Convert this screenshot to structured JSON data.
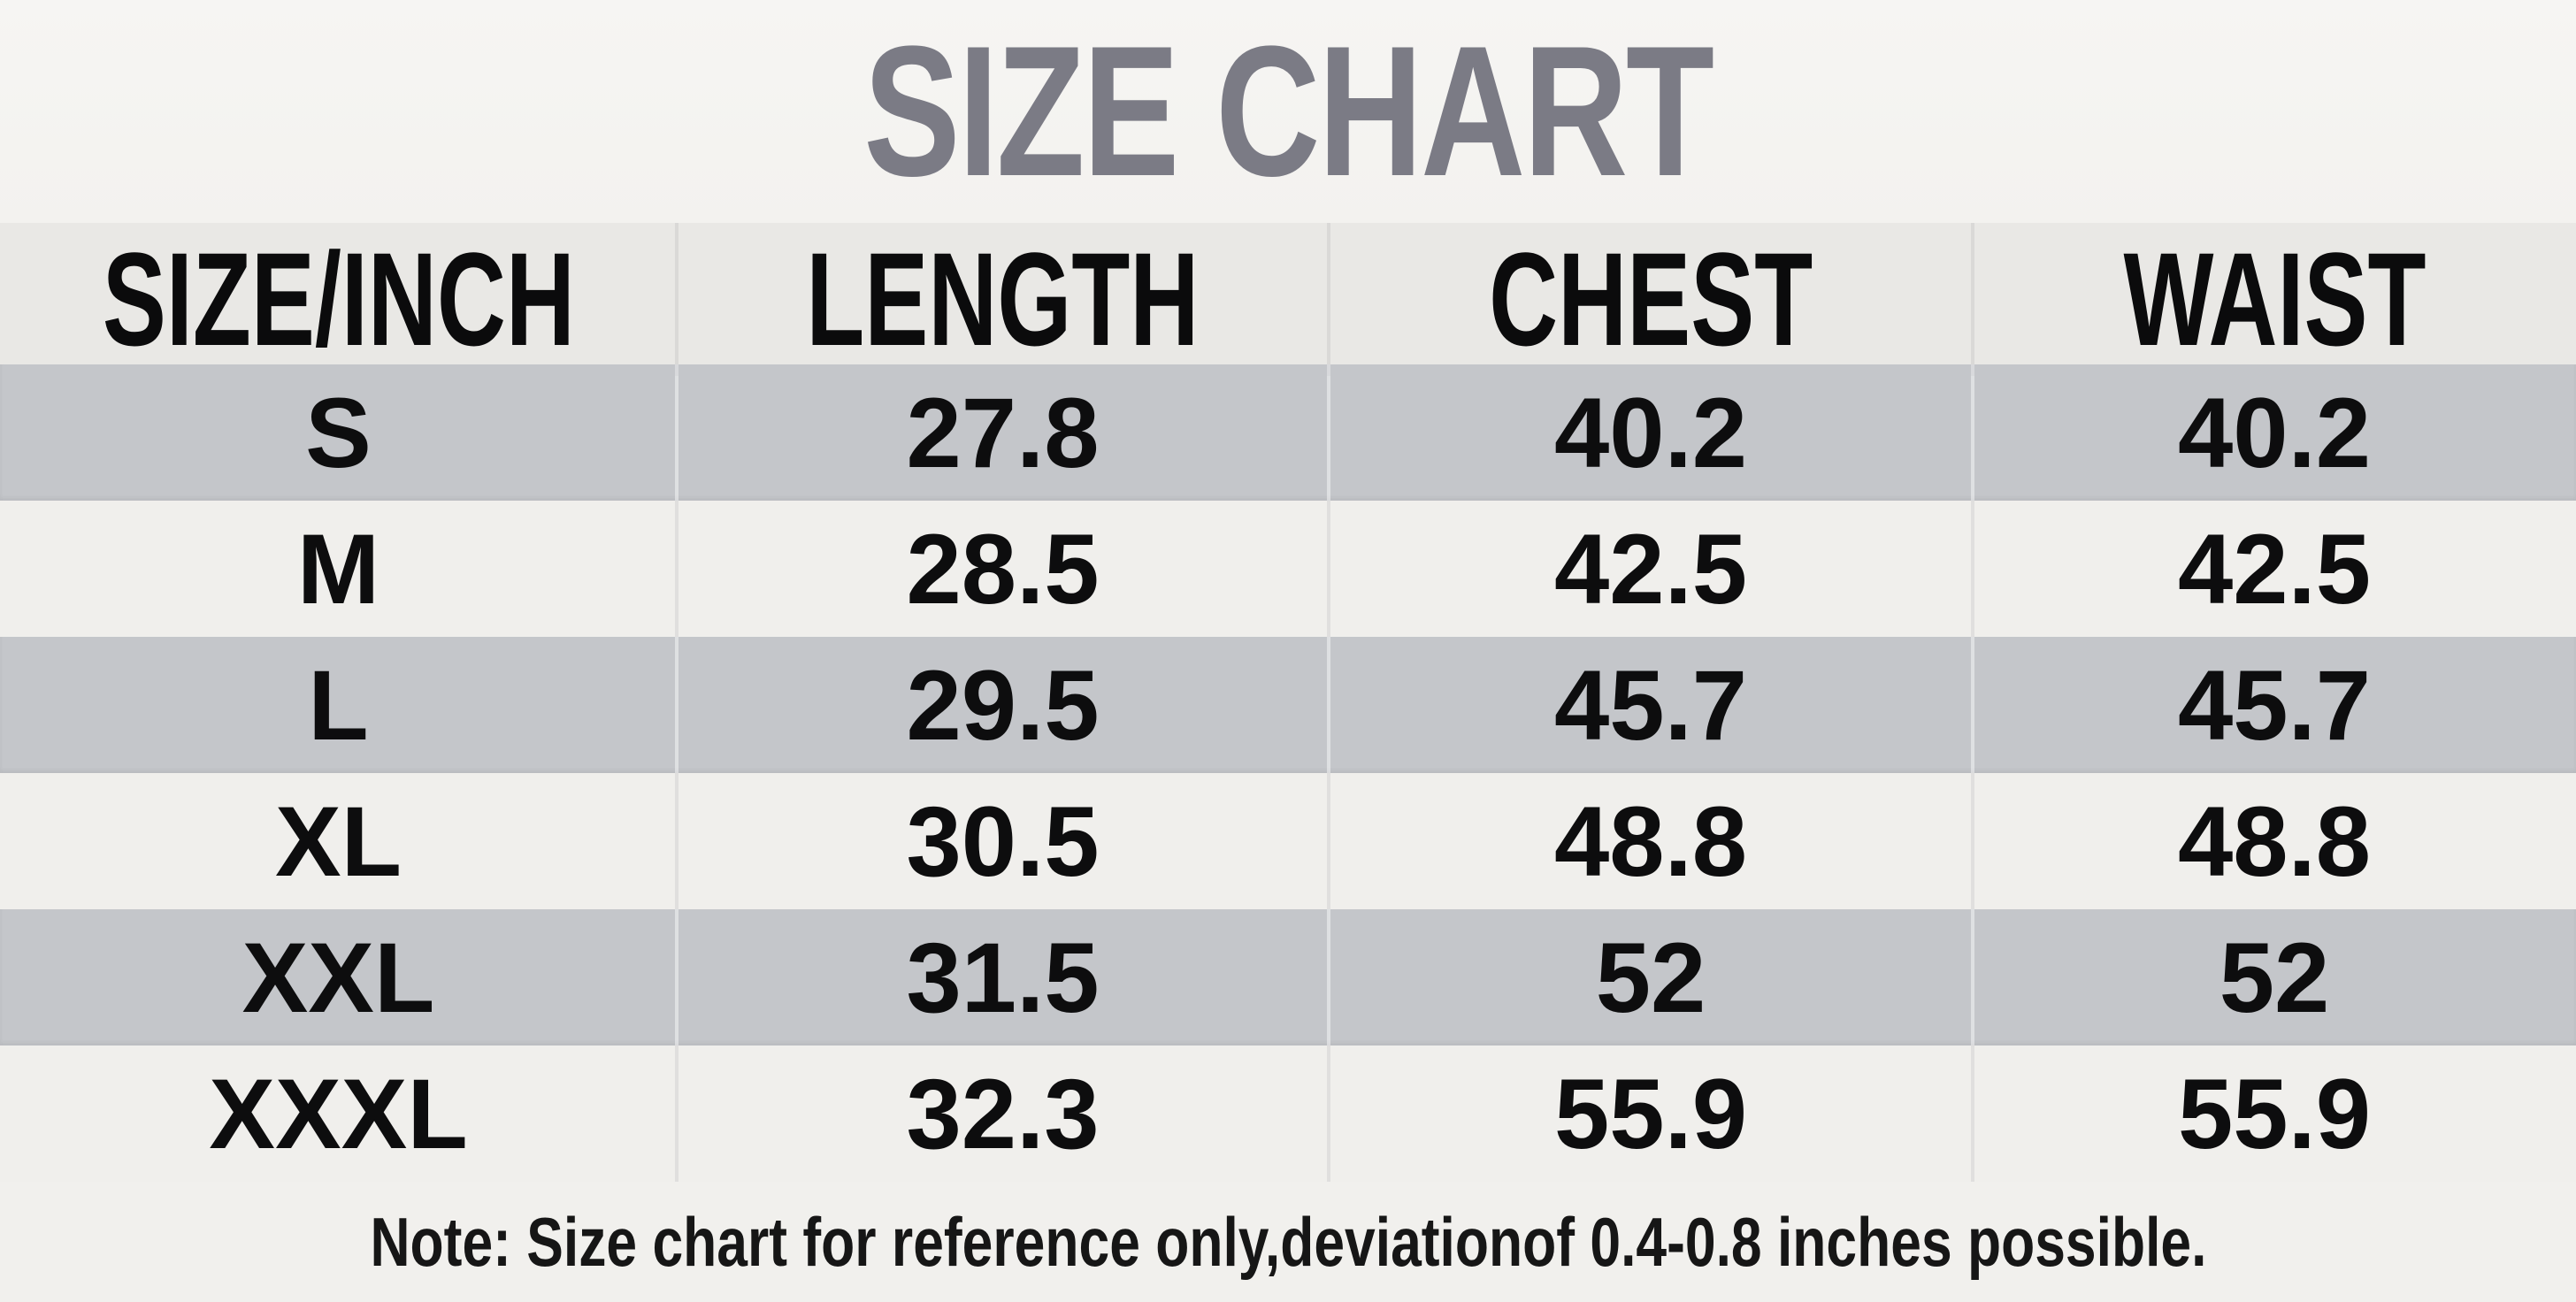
{
  "chart_data": {
    "type": "table",
    "title": "SIZE CHART",
    "units": "inches",
    "columns": [
      "SIZE/INCH",
      "LENGTH",
      "CHEST",
      "WAIST"
    ],
    "rows": [
      [
        "S",
        "27.8",
        "40.2",
        "40.2"
      ],
      [
        "M",
        "28.5",
        "42.5",
        "42.5"
      ],
      [
        "L",
        "29.5",
        "45.7",
        "45.7"
      ],
      [
        "XL",
        "30.5",
        "48.8",
        "48.8"
      ],
      [
        "XXL",
        "31.5",
        "52",
        "52"
      ],
      [
        "XXXL",
        "32.3",
        "55.9",
        "55.9"
      ]
    ],
    "note": "Note: Size chart for reference only,deviationof 0.4-0.8 inches possible."
  },
  "colors": {
    "title_text": "#7b7b85",
    "header_row_bg": "#e9e8e5",
    "row_gray_bg": "#c4c6ca",
    "row_light_bg": "#f0efec",
    "note_bg": "#f1f0ed",
    "body_text": "#0d0d0e",
    "page_bg": "#f4f3f0"
  }
}
